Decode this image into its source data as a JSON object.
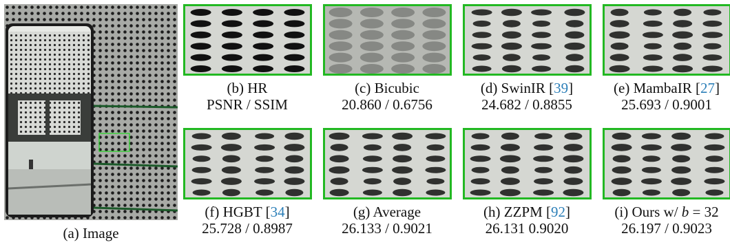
{
  "main": {
    "caption": "(a) Image"
  },
  "panels": [
    {
      "id": "b",
      "label": "(b) HR",
      "cite": "",
      "metrics": "PSNR / SSIM",
      "style": "hr"
    },
    {
      "id": "c",
      "label": "(c) Bicubic",
      "cite": "",
      "metrics": "20.860 / 0.6756",
      "style": "bicubic"
    },
    {
      "id": "d",
      "label": "(d) SwinIR [",
      "cite": "39",
      "metrics": "24.682 / 0.8855",
      "style": "sr"
    },
    {
      "id": "e",
      "label": "(e) MambaIR [",
      "cite": "27",
      "metrics": "25.693 / 0.9001",
      "style": "sr"
    },
    {
      "id": "f",
      "label": "(f) HGBT [",
      "cite": "34",
      "metrics": "25.728 / 0.8987",
      "style": "sr"
    },
    {
      "id": "g",
      "label": "(g) Average",
      "cite": "",
      "metrics": "26.133 / 0.9021",
      "style": "sr"
    },
    {
      "id": "h",
      "label": "(h) ZZPM [",
      "cite": "92",
      "metrics": "26.131 0.9020",
      "style": "sr"
    },
    {
      "id": "i",
      "label": "(i) Ours w/ ",
      "math": "b",
      "math_rest": " = 32",
      "cite": "",
      "metrics": "26.197 / 0.9023",
      "style": "sr"
    }
  ],
  "colors": {
    "crop_border": "#22b822",
    "cite": "#2c7fb8"
  }
}
